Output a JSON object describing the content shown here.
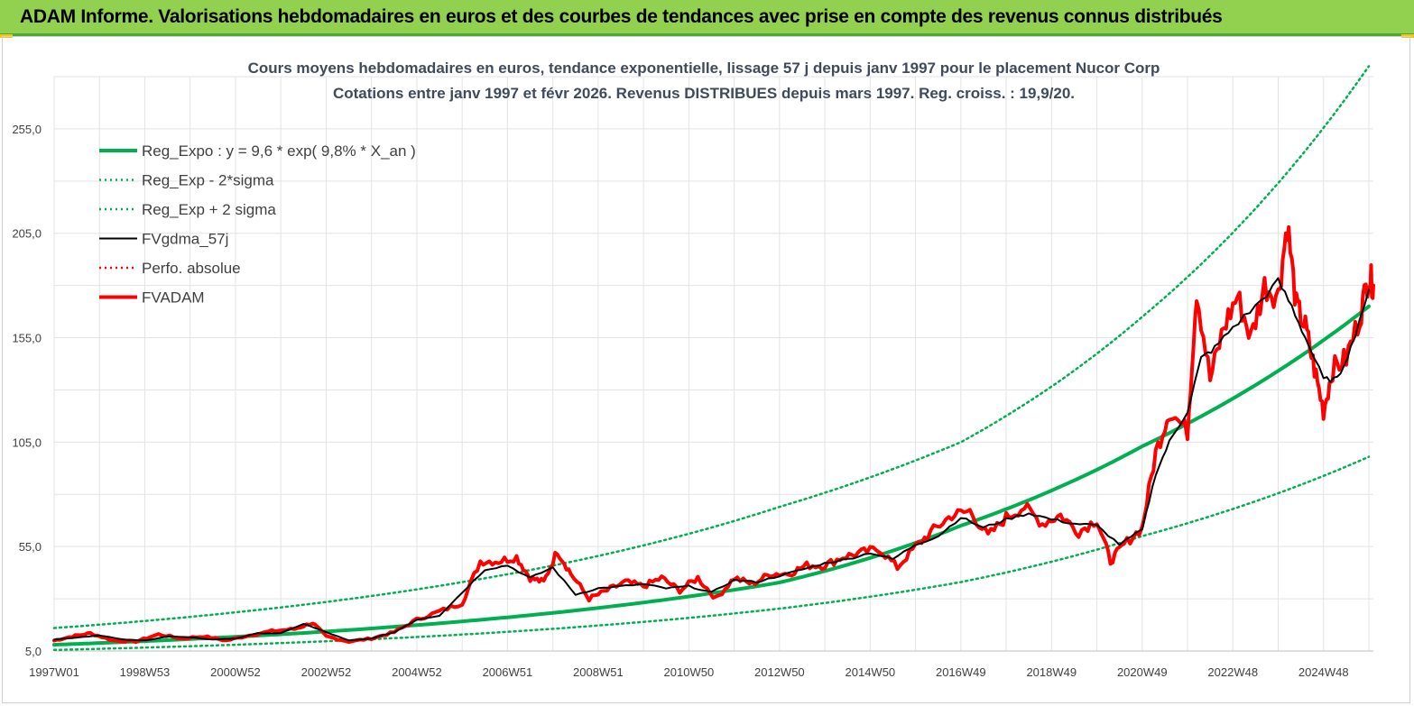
{
  "page": {
    "title": "ADAM Informe. Valorisations hebdomadaires en euros et des courbes de tendances avec prise en compte des revenus connus distribués",
    "colors": {
      "header_bg": "#92d050",
      "header_border": "#4ea72e",
      "accent": "#f5c518"
    }
  },
  "chart_data": {
    "type": "line",
    "title_line1": "Cours moyens hebdomadaires en euros, tendance exponentielle, lissage 57 j depuis janv 1997 pour le placement Nucor Corp",
    "title_line2": "Cotations entre janv 1997 et févr 2026. Revenus DISTRIBUES depuis mars 1997. Reg. croiss. : 19,9/20.",
    "x_range": [
      1997.0,
      2026.1
    ],
    "ylim": [
      5,
      280
    ],
    "y_ticks": [
      "5,0",
      "55,0",
      "105,0",
      "155,0",
      "205,0",
      "255,0"
    ],
    "y_tick_values": [
      5,
      55,
      105,
      155,
      205,
      255
    ],
    "x_ticks": [
      "1997W01",
      "1998W53",
      "2000W52",
      "2002W52",
      "2004W52",
      "2006W51",
      "2008W51",
      "2010W50",
      "2012W50",
      "2014W50",
      "2016W49",
      "2018W49",
      "2020W49",
      "2022W48",
      "2024W48"
    ],
    "x_tick_values": [
      1997.0,
      1999.0,
      2001.0,
      2003.0,
      2005.0,
      2007.0,
      2009.0,
      2011.0,
      2013.0,
      2015.0,
      2017.0,
      2019.0,
      2021.0,
      2023.0,
      2025.0
    ],
    "grid": true,
    "legend_position": "top-left",
    "series": [
      {
        "name": "Reg_Expo : y = 9,6 * exp( 9,8% *  X_an )",
        "color": "#00b050",
        "style": "solid-thick",
        "points": [
          [
            1997.0,
            8.0
          ],
          [
            2001.0,
            11.8
          ],
          [
            2005.0,
            17.4
          ],
          [
            2009.0,
            25.6
          ],
          [
            2013.0,
            37.8
          ],
          [
            2017.0,
            65.0
          ],
          [
            2021.0,
            103.0
          ],
          [
            2026.0,
            170.0
          ]
        ]
      },
      {
        "name": "Reg_Exp - 2*sigma",
        "color": "#00b050",
        "style": "dotted",
        "points": [
          [
            1997.0,
            5.5
          ],
          [
            2001.0,
            8.0
          ],
          [
            2005.0,
            11.7
          ],
          [
            2009.0,
            17.2
          ],
          [
            2013.0,
            25.3
          ],
          [
            2017.0,
            38.0
          ],
          [
            2021.0,
            60.0
          ],
          [
            2026.0,
            98.0
          ]
        ]
      },
      {
        "name": "Reg_Exp + 2 sigma",
        "color": "#00b050",
        "style": "dotted",
        "points": [
          [
            1997.0,
            16.0
          ],
          [
            2001.0,
            23.5
          ],
          [
            2005.0,
            34.5
          ],
          [
            2009.0,
            50.5
          ],
          [
            2013.0,
            74.0
          ],
          [
            2017.0,
            105.0
          ],
          [
            2021.0,
            165.0
          ],
          [
            2026.0,
            285.0
          ]
        ]
      },
      {
        "name": "FVgdma_57j",
        "color": "#000000",
        "style": "solid",
        "points": [
          [
            1997.0,
            10.5
          ],
          [
            1997.5,
            11.5
          ],
          [
            1998.0,
            12.5
          ],
          [
            1998.5,
            10.5
          ],
          [
            1999.0,
            10.0
          ],
          [
            1999.5,
            12.0
          ],
          [
            2000.0,
            11.5
          ],
          [
            2000.5,
            10.5
          ],
          [
            2001.0,
            11.0
          ],
          [
            2001.5,
            13.5
          ],
          [
            2002.0,
            13.5
          ],
          [
            2002.5,
            18.0
          ],
          [
            2003.0,
            14.0
          ],
          [
            2003.5,
            10.0
          ],
          [
            2004.0,
            11.0
          ],
          [
            2004.5,
            14.0
          ],
          [
            2005.0,
            20.0
          ],
          [
            2005.5,
            22.0
          ],
          [
            2006.0,
            33.0
          ],
          [
            2006.5,
            44.0
          ],
          [
            2007.0,
            46.0
          ],
          [
            2007.5,
            40.0
          ],
          [
            2008.0,
            45.0
          ],
          [
            2008.5,
            32.0
          ],
          [
            2009.0,
            35.0
          ],
          [
            2009.5,
            36.0
          ],
          [
            2010.0,
            37.0
          ],
          [
            2010.5,
            35.0
          ],
          [
            2011.0,
            36.0
          ],
          [
            2011.5,
            33.0
          ],
          [
            2012.0,
            39.0
          ],
          [
            2012.5,
            38.0
          ],
          [
            2013.0,
            41.0
          ],
          [
            2013.5,
            44.0
          ],
          [
            2014.0,
            47.0
          ],
          [
            2014.5,
            49.0
          ],
          [
            2015.0,
            52.0
          ],
          [
            2015.5,
            49.0
          ],
          [
            2016.0,
            56.0
          ],
          [
            2016.5,
            60.0
          ],
          [
            2017.0,
            69.0
          ],
          [
            2017.5,
            64.0
          ],
          [
            2018.0,
            68.0
          ],
          [
            2018.5,
            71.0
          ],
          [
            2019.0,
            68.0
          ],
          [
            2019.5,
            66.0
          ],
          [
            2020.0,
            65.0
          ],
          [
            2020.5,
            56.0
          ],
          [
            2021.0,
            63.0
          ],
          [
            2021.3,
            90.0
          ],
          [
            2021.6,
            105.0
          ],
          [
            2022.0,
            120.0
          ],
          [
            2022.3,
            145.0
          ],
          [
            2022.6,
            150.0
          ],
          [
            2023.0,
            160.0
          ],
          [
            2023.5,
            170.0
          ],
          [
            2024.0,
            182.0
          ],
          [
            2024.3,
            170.0
          ],
          [
            2024.6,
            155.0
          ],
          [
            2025.0,
            135.0
          ],
          [
            2025.3,
            135.0
          ],
          [
            2025.6,
            150.0
          ],
          [
            2026.0,
            178.0
          ]
        ]
      },
      {
        "name": "Perfo. absolue",
        "color": "#ff0000",
        "style": "dotted",
        "points": []
      },
      {
        "name": "FVADAM",
        "color": "#ff0000",
        "style": "solid-thick",
        "points": [
          [
            1997.0,
            10.0
          ],
          [
            1997.4,
            12.0
          ],
          [
            1997.8,
            13.5
          ],
          [
            1998.3,
            10.0
          ],
          [
            1998.8,
            9.5
          ],
          [
            1999.3,
            13.0
          ],
          [
            1999.8,
            11.0
          ],
          [
            2000.3,
            12.0
          ],
          [
            2000.8,
            10.0
          ],
          [
            2001.3,
            12.5
          ],
          [
            2001.8,
            14.5
          ],
          [
            2002.3,
            15.5
          ],
          [
            2002.7,
            18.5
          ],
          [
            2003.0,
            12.0
          ],
          [
            2003.5,
            9.5
          ],
          [
            2004.0,
            11.0
          ],
          [
            2004.5,
            14.0
          ],
          [
            2005.0,
            20.0
          ],
          [
            2005.5,
            24.0
          ],
          [
            2006.0,
            28.0
          ],
          [
            2006.4,
            48.0
          ],
          [
            2006.8,
            48.0
          ],
          [
            2007.2,
            50.0
          ],
          [
            2007.5,
            40.0
          ],
          [
            2007.8,
            38.0
          ],
          [
            2008.1,
            53.0
          ],
          [
            2008.4,
            42.0
          ],
          [
            2008.8,
            30.0
          ],
          [
            2009.2,
            34.0
          ],
          [
            2009.6,
            38.0
          ],
          [
            2010.0,
            36.0
          ],
          [
            2010.4,
            40.0
          ],
          [
            2010.8,
            34.0
          ],
          [
            2011.2,
            40.0
          ],
          [
            2011.6,
            30.0
          ],
          [
            2012.0,
            40.0
          ],
          [
            2012.4,
            37.0
          ],
          [
            2012.8,
            42.0
          ],
          [
            2013.2,
            42.0
          ],
          [
            2013.6,
            46.0
          ],
          [
            2014.0,
            46.0
          ],
          [
            2014.4,
            50.0
          ],
          [
            2014.8,
            52.0
          ],
          [
            2015.2,
            54.0
          ],
          [
            2015.6,
            45.0
          ],
          [
            2016.0,
            55.0
          ],
          [
            2016.4,
            63.0
          ],
          [
            2016.8,
            70.0
          ],
          [
            2017.2,
            72.0
          ],
          [
            2017.6,
            60.0
          ],
          [
            2018.0,
            69.0
          ],
          [
            2018.4,
            74.0
          ],
          [
            2018.8,
            66.0
          ],
          [
            2019.2,
            70.0
          ],
          [
            2019.6,
            62.0
          ],
          [
            2020.0,
            68.0
          ],
          [
            2020.3,
            48.0
          ],
          [
            2020.6,
            56.0
          ],
          [
            2021.0,
            64.0
          ],
          [
            2021.3,
            100.0
          ],
          [
            2021.6,
            120.0
          ],
          [
            2022.0,
            110.0
          ],
          [
            2022.2,
            178.0
          ],
          [
            2022.5,
            135.0
          ],
          [
            2022.8,
            160.0
          ],
          [
            2023.1,
            175.0
          ],
          [
            2023.4,
            155.0
          ],
          [
            2023.7,
            180.0
          ],
          [
            2024.0,
            175.0
          ],
          [
            2024.2,
            210.0
          ],
          [
            2024.4,
            170.0
          ],
          [
            2024.6,
            160.0
          ],
          [
            2024.8,
            140.0
          ],
          [
            2025.0,
            120.0
          ],
          [
            2025.2,
            140.0
          ],
          [
            2025.5,
            145.0
          ],
          [
            2025.8,
            165.0
          ],
          [
            2026.0,
            185.0
          ],
          [
            2026.1,
            180.0
          ]
        ]
      }
    ]
  }
}
